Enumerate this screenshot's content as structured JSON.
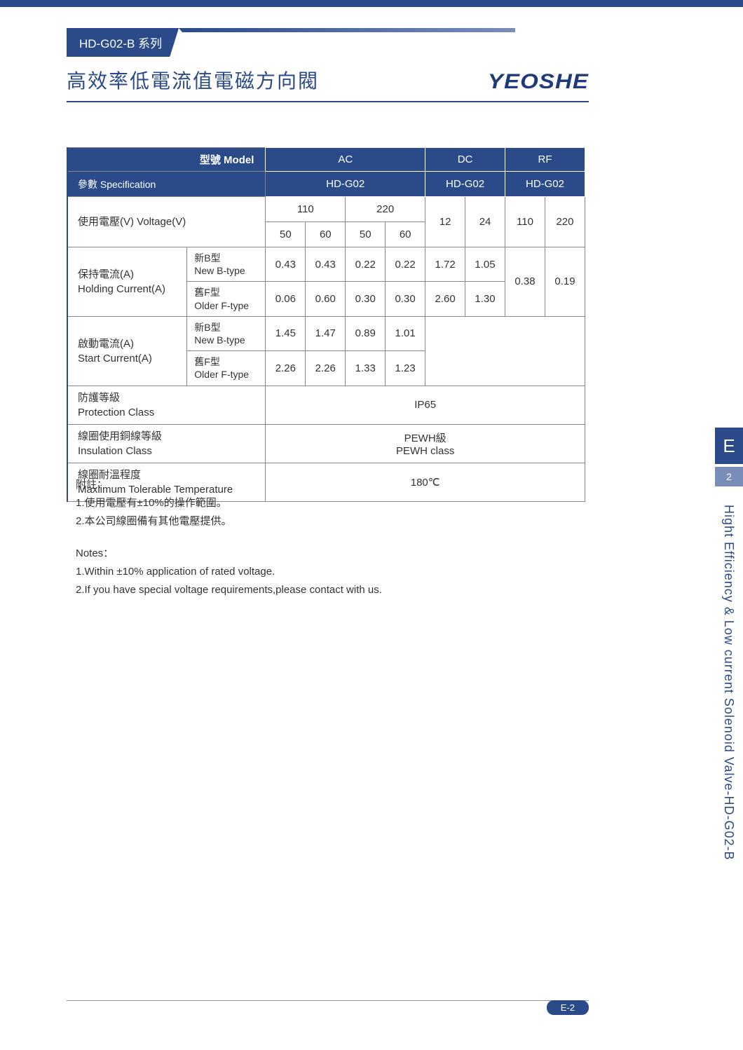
{
  "tab": "HD-G02-B 系列",
  "title": "高效率低電流值電磁方向閥",
  "brand": "YEOSHE",
  "table": {
    "model_label": "型號 Model",
    "spec_label": "參數  Specification",
    "ac": "AC",
    "dc": "DC",
    "rf": "RF",
    "hd": "HD-G02",
    "voltage_label_cn": "使用電壓(V) Voltage(V)",
    "v110": "110",
    "v220": "220",
    "f50": "50",
    "f60": "60",
    "d12": "12",
    "d24": "24",
    "r110": "110",
    "r220": "220",
    "hold_cn": "保持電流(A)",
    "hold_en": "Holding Current(A)",
    "start_cn": "啟動電流(A)",
    "start_en": "Start Current(A)",
    "newb_cn": "新B型",
    "newb_en": "New B-type",
    "oldf_cn": "舊F型",
    "oldf_en": "Older F-type",
    "hold_newb": [
      "0.43",
      "0.43",
      "0.22",
      "0.22",
      "1.72",
      "1.05"
    ],
    "hold_oldf": [
      "0.06",
      "0.60",
      "0.30",
      "0.30",
      "2.60",
      "1.30"
    ],
    "hold_rf": [
      "0.38",
      "0.19"
    ],
    "start_newb": [
      "1.45",
      "1.47",
      "0.89",
      "1.01"
    ],
    "start_oldf": [
      "2.26",
      "2.26",
      "1.33",
      "1.23"
    ],
    "prot_cn": "防護等級",
    "prot_en": "Protection Class",
    "prot_val": "IP65",
    "ins_cn": "線圈使用銅線等級",
    "ins_en": "Insulation Class",
    "ins_val_cn": "PEWH級",
    "ins_val_en": "PEWH class",
    "temp_cn": "線圈耐溫程度",
    "temp_en": "Maxlimum Tolerable Temperature",
    "temp_val": "180℃"
  },
  "notes": {
    "h1": "附註：",
    "n1": "1.使用電壓有±10%的操作範圍。",
    "n2": "2.本公司線圈備有其他電壓提供。",
    "h2": "Notes：",
    "n3": "1.Within ±10% application of rated voltage.",
    "n4": "2.If  you have special voltage requirements,please contact with us."
  },
  "side": {
    "e": "E",
    "num": "2",
    "text": "Hight Efficiency & Low current Solenoid Valve-HD-G02-B"
  },
  "page_num": "E-2"
}
